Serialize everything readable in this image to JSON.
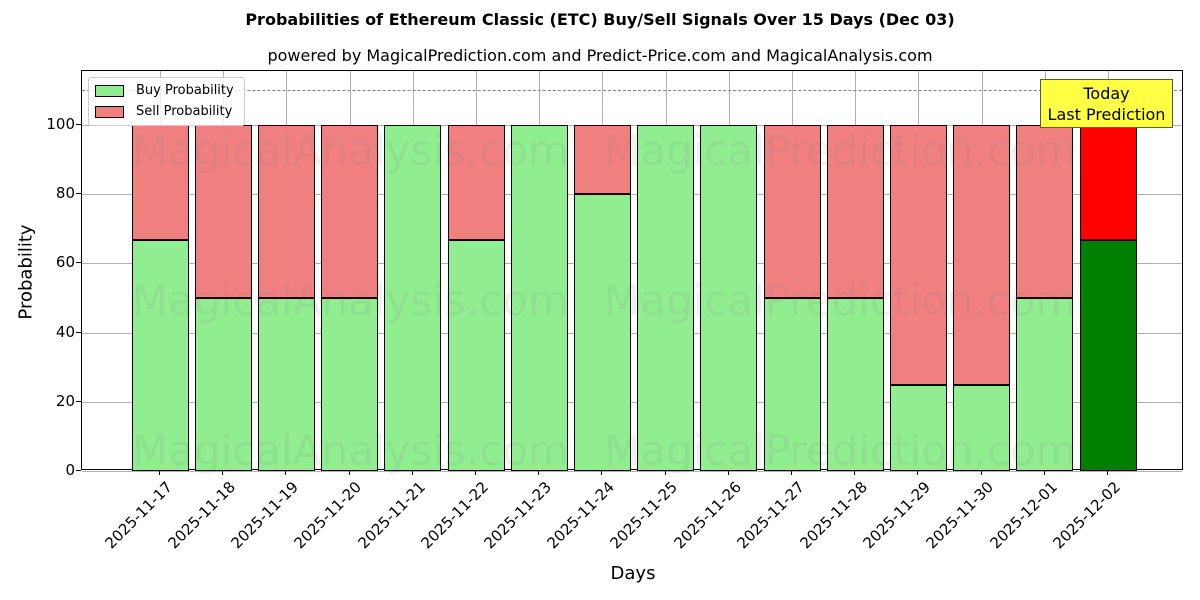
{
  "chart_data": {
    "type": "bar",
    "stacked": true,
    "title": "Probabilities of Ethereum Classic (ETC) Buy/Sell Signals Over 15 Days (Dec 03)",
    "subtitle": "powered by MagicalPrediction.com and Predict-Price.com and MagicalAnalysis.com",
    "xlabel": "Days",
    "ylabel": "Probability",
    "ylim": [
      0,
      115
    ],
    "yticks": [
      0,
      20,
      40,
      60,
      80,
      100
    ],
    "grid": true,
    "reference_line": {
      "y": 110,
      "style": "dashed",
      "color": "#808080"
    },
    "legend_position": "upper left",
    "categories": [
      "2025-11-17",
      "2025-11-18",
      "2025-11-19",
      "2025-11-20",
      "2025-11-21",
      "2025-11-22",
      "2025-11-23",
      "2025-11-24",
      "2025-11-25",
      "2025-11-26",
      "2025-11-27",
      "2025-11-28",
      "2025-11-29",
      "2025-11-30",
      "2025-12-01",
      "2025-12-02"
    ],
    "series": [
      {
        "name": "Buy Probability",
        "color": "#90ee90",
        "values": [
          66.7,
          50,
          50,
          50,
          100,
          66.7,
          100,
          80,
          100,
          100,
          50,
          50,
          25,
          25,
          50,
          66.7
        ]
      },
      {
        "name": "Sell Probability",
        "color": "#f08080",
        "values": [
          33.3,
          50,
          50,
          50,
          0,
          33.3,
          0,
          20,
          0,
          0,
          50,
          50,
          75,
          75,
          50,
          33.3
        ]
      }
    ],
    "highlight": {
      "category": "2025-12-02",
      "buy_color": "#008000",
      "sell_color": "#ff0000",
      "annotation": "Today\nLast Prediction",
      "annotation_bg": "#ffff44"
    }
  },
  "labels": {
    "title": "Probabilities of Ethereum Classic (ETC) Buy/Sell Signals Over 15 Days (Dec 03)",
    "subtitle": "powered by MagicalPrediction.com and Predict-Price.com and MagicalAnalysis.com",
    "xlabel": "Days",
    "ylabel": "Probability",
    "legend_buy": "Buy Probability",
    "legend_sell": "Sell Probability",
    "today_line1": "Today",
    "today_line2": "Last Prediction",
    "watermark_1": "MagicalAnalysis.com",
    "watermark_2": "MagicalPrediction.com"
  }
}
